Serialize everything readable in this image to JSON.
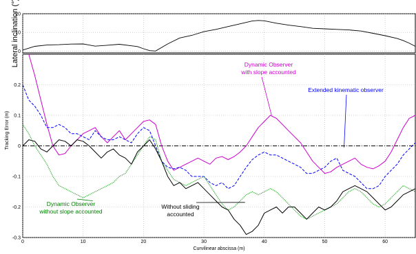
{
  "chart_data": [
    {
      "type": "line",
      "ylabel": "Lateral inclination (°)",
      "xlabel": "",
      "xlim": [
        0,
        65
      ],
      "ylim": [
        -1,
        20
      ],
      "yticks": [
        "0",
        "10",
        "20"
      ],
      "grid": true,
      "series": [
        {
          "color": "#000000",
          "x": [
            0,
            2,
            4,
            6,
            8,
            10,
            12,
            14,
            16,
            18,
            19,
            20,
            21,
            22,
            24,
            26,
            28,
            30,
            32,
            34,
            36,
            38,
            39,
            40,
            42,
            44,
            46,
            48,
            50,
            52,
            54,
            56,
            58,
            60,
            62,
            63,
            64,
            65
          ],
          "y": [
            0.5,
            2.5,
            3.2,
            3.4,
            3.7,
            3.8,
            2.6,
            3.1,
            3.6,
            2.8,
            2.4,
            1.2,
            0.2,
            0.0,
            3.8,
            7.0,
            8.4,
            10.4,
            11.6,
            13.1,
            14.6,
            16.1,
            16.4,
            16.2,
            14.9,
            13.9,
            13.1,
            12.2,
            11.9,
            11.6,
            11.3,
            10.7,
            9.5,
            8.2,
            6.7,
            5.6,
            4.2,
            2.5
          ]
        }
      ]
    },
    {
      "type": "line",
      "ylabel": "Tracking Error (m)",
      "xlabel": "Curvilinear abscissa (m)",
      "xlim": [
        0,
        65
      ],
      "ylim": [
        -0.3,
        0.3
      ],
      "xticks": [
        "0",
        "10",
        "20",
        "30",
        "40",
        "50",
        "60"
      ],
      "yticks": [
        "-0.3",
        "-0.2",
        "-0.1",
        "0",
        "0.1",
        "0.2"
      ],
      "grid": true,
      "reference_line": {
        "y": 0,
        "color": "#000000",
        "style": "dash-dot"
      },
      "annotations": [
        {
          "lines": [
            "Dynamic Observer",
            "with slope accounted"
          ],
          "color": "#cc00cc",
          "x": 41.2,
          "y": 0.1
        },
        {
          "lines": [
            "Extended kinematic observer"
          ],
          "color": "#0000ff",
          "x": 53.2,
          "y": -0.005
        },
        {
          "lines": [
            "Dynamic Observer",
            "without slope accounted"
          ],
          "color": "#008000",
          "x": 11.6,
          "y": -0.18
        },
        {
          "lines": [
            "Without sliding",
            "accounted"
          ],
          "color": "#000000",
          "x": 36.8,
          "y": -0.185
        }
      ],
      "series": [
        {
          "color": "#cc00cc",
          "style": "solid",
          "x": [
            1,
            2,
            3,
            4,
            5,
            6,
            7,
            8,
            9,
            10,
            11,
            12,
            13,
            14,
            15,
            16,
            17,
            18,
            19,
            20,
            21,
            22,
            23,
            24,
            25,
            26,
            27,
            28,
            29,
            30,
            31,
            32,
            33,
            34,
            35,
            36,
            37,
            38,
            39,
            40,
            41,
            42,
            43,
            44,
            45,
            46,
            47,
            48,
            49,
            50,
            51,
            52,
            53,
            54,
            55,
            56,
            57,
            58,
            59,
            60,
            61,
            62,
            63,
            64,
            65
          ],
          "y": [
            0.3,
            0.23,
            0.15,
            0.07,
            0.0,
            -0.03,
            -0.025,
            0.0,
            0.02,
            0.04,
            0.05,
            0.06,
            0.03,
            0.01,
            0.03,
            0.05,
            0.02,
            0.04,
            0.06,
            0.08,
            0.085,
            0.07,
            0.0,
            -0.05,
            -0.08,
            -0.07,
            -0.06,
            -0.05,
            -0.04,
            -0.05,
            -0.06,
            -0.04,
            -0.035,
            -0.045,
            -0.035,
            -0.02,
            0.0,
            0.03,
            0.06,
            0.08,
            0.1,
            0.09,
            0.07,
            0.05,
            0.03,
            0.01,
            -0.02,
            -0.05,
            -0.07,
            -0.09,
            -0.085,
            -0.07,
            -0.06,
            -0.05,
            -0.04,
            -0.06,
            -0.07,
            -0.075,
            -0.065,
            -0.05,
            -0.02,
            0.02,
            0.06,
            0.09,
            0.1
          ]
        },
        {
          "color": "#0000ff",
          "style": "dashed",
          "x": [
            0,
            1,
            2,
            3,
            4,
            5,
            6,
            7,
            8,
            9,
            10,
            11,
            12,
            13,
            14,
            15,
            16,
            17,
            18,
            19,
            20,
            21,
            22,
            23,
            24,
            25,
            26,
            27,
            28,
            29,
            30,
            31,
            32,
            33,
            34,
            35,
            36,
            37,
            38,
            39,
            40,
            41,
            42,
            43,
            44,
            45,
            46,
            47,
            48,
            49,
            50,
            51,
            52,
            53,
            54,
            55,
            56,
            57,
            58,
            59,
            60,
            61,
            62,
            63,
            64,
            65
          ],
          "y": [
            0.2,
            0.15,
            0.13,
            0.1,
            0.06,
            0.06,
            0.07,
            0.06,
            0.04,
            0.04,
            0.03,
            0.02,
            0.05,
            0.03,
            0.02,
            0.02,
            0.03,
            0.02,
            0.01,
            0.04,
            0.06,
            0.05,
            0.0,
            -0.05,
            -0.07,
            -0.075,
            -0.07,
            -0.08,
            -0.1,
            -0.1,
            -0.1,
            -0.12,
            -0.13,
            -0.12,
            -0.14,
            -0.13,
            -0.1,
            -0.07,
            -0.045,
            -0.03,
            -0.02,
            -0.03,
            -0.03,
            -0.04,
            -0.05,
            -0.06,
            -0.07,
            -0.09,
            -0.09,
            -0.08,
            -0.07,
            -0.05,
            -0.04,
            -0.08,
            -0.09,
            -0.1,
            -0.12,
            -0.14,
            -0.14,
            -0.13,
            -0.1,
            -0.08,
            -0.06,
            -0.03,
            -0.01,
            0.01
          ]
        },
        {
          "color": "#33aa33",
          "style": "dotted",
          "x": [
            0,
            1,
            2,
            3,
            4,
            5,
            6,
            7,
            8,
            9,
            10,
            11,
            12,
            13,
            14,
            15,
            16,
            17,
            18,
            19,
            20,
            21,
            22,
            23,
            24,
            25,
            26,
            27,
            28,
            29,
            30,
            31,
            32,
            33,
            34,
            35,
            36,
            37,
            38,
            39,
            40,
            41,
            42,
            43,
            44,
            45,
            46,
            47,
            48,
            49,
            50,
            51,
            52,
            53,
            54,
            55,
            56,
            57,
            58,
            59,
            60,
            61,
            62,
            63,
            64,
            65
          ],
          "y": [
            0.07,
            0.04,
            0.0,
            -0.03,
            -0.06,
            -0.1,
            -0.13,
            -0.14,
            -0.15,
            -0.16,
            -0.17,
            -0.16,
            -0.15,
            -0.14,
            -0.13,
            -0.12,
            -0.1,
            -0.09,
            -0.06,
            -0.03,
            0.0,
            0.03,
            0.02,
            -0.05,
            -0.08,
            -0.11,
            -0.12,
            -0.13,
            -0.12,
            -0.11,
            -0.1,
            -0.13,
            -0.16,
            -0.19,
            -0.21,
            -0.2,
            -0.18,
            -0.16,
            -0.15,
            -0.16,
            -0.15,
            -0.14,
            -0.15,
            -0.17,
            -0.19,
            -0.21,
            -0.23,
            -0.24,
            -0.23,
            -0.22,
            -0.21,
            -0.2,
            -0.19,
            -0.17,
            -0.15,
            -0.14,
            -0.15,
            -0.17,
            -0.19,
            -0.2,
            -0.19,
            -0.17,
            -0.15,
            -0.13,
            -0.14,
            -0.15
          ]
        },
        {
          "color": "#000000",
          "style": "solid",
          "x": [
            0,
            1,
            2,
            3,
            4,
            5,
            6,
            7,
            8,
            9,
            10,
            11,
            12,
            13,
            14,
            15,
            16,
            17,
            18,
            19,
            20,
            21,
            22,
            23,
            24,
            25,
            26,
            27,
            28,
            29,
            30,
            31,
            32,
            33,
            34,
            35,
            36,
            37,
            38,
            39,
            40,
            41,
            42,
            43,
            44,
            45,
            46,
            47,
            48,
            49,
            50,
            51,
            52,
            53,
            54,
            55,
            56,
            57,
            58,
            59,
            60,
            61,
            62,
            63,
            64,
            65
          ],
          "y": [
            0.0,
            0.02,
            0.015,
            -0.01,
            -0.02,
            0.0,
            0.02,
            0.015,
            0.0,
            0.02,
            0.015,
            0.0,
            -0.02,
            -0.04,
            -0.02,
            -0.01,
            -0.03,
            -0.04,
            -0.06,
            -0.02,
            0.0,
            0.02,
            -0.01,
            -0.05,
            -0.1,
            -0.13,
            -0.12,
            -0.14,
            -0.13,
            -0.12,
            -0.14,
            -0.16,
            -0.18,
            -0.2,
            -0.21,
            -0.24,
            -0.26,
            -0.29,
            -0.28,
            -0.26,
            -0.22,
            -0.21,
            -0.2,
            -0.22,
            -0.2,
            -0.2,
            -0.22,
            -0.24,
            -0.22,
            -0.2,
            -0.21,
            -0.2,
            -0.18,
            -0.15,
            -0.14,
            -0.13,
            -0.14,
            -0.15,
            -0.17,
            -0.19,
            -0.21,
            -0.2,
            -0.18,
            -0.16,
            -0.15,
            -0.14
          ]
        }
      ]
    }
  ]
}
